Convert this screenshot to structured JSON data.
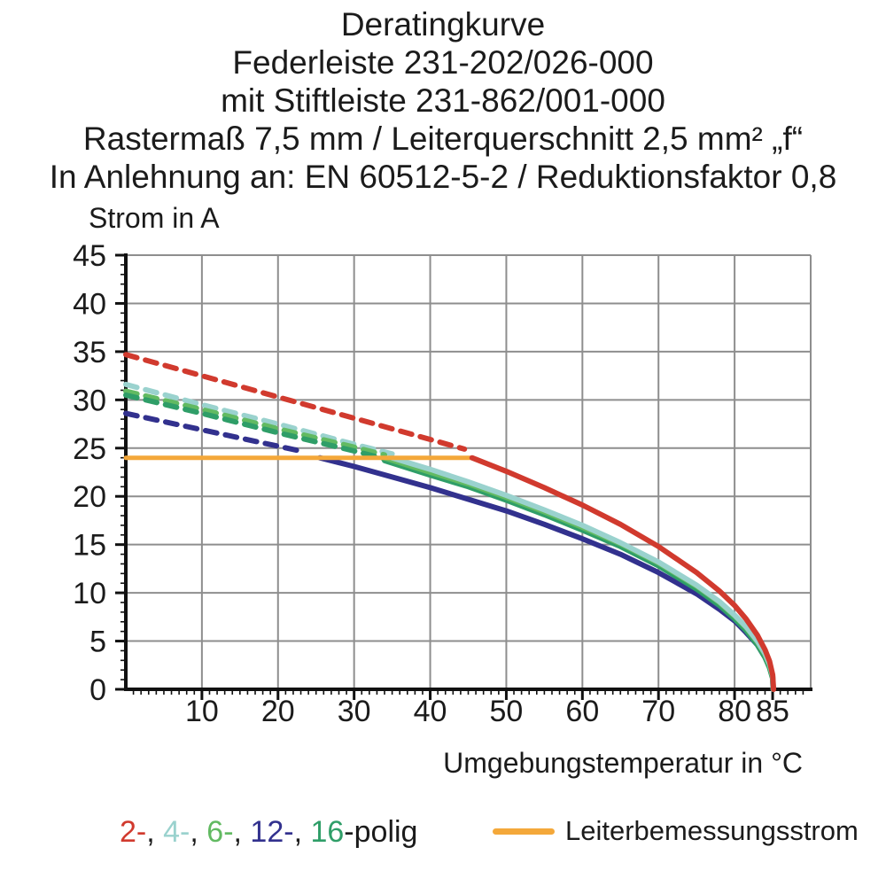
{
  "title": {
    "line1": "Deratingkurve",
    "line2": "Federleiste 231-202/026-000",
    "line3": "mit Stiftleiste 231-862/001-000",
    "line4": "Rastermaß 7,5 mm / Leiterquerschnitt 2,5 mm² „f“",
    "line5": "In Anlehnung an: EN 60512-5-2 / Reduktionsfaktor 0,8"
  },
  "axes": {
    "y_label": "Strom in A",
    "x_label": "Umgebungstemperatur in °C"
  },
  "legend": {
    "pole_items": [
      {
        "text": "2-",
        "color": "#d13a2e"
      },
      {
        "text": "4-",
        "color": "#9ad2ce"
      },
      {
        "text": "6-",
        "color": "#62ba62"
      },
      {
        "text": "12-",
        "color": "#32318e"
      },
      {
        "text": "16",
        "color": "#2f9e68"
      }
    ],
    "separator": ", ",
    "suffix": "-polig",
    "rated_label": "Leiterbemessungsstrom",
    "rated_color": "#f4a83a"
  },
  "colors": {
    "grid": "#8e8e8e",
    "axis": "#111111",
    "text": "#1b1b1b"
  },
  "chart_data": {
    "type": "line",
    "title": "Deratingkurve Federleiste 231-202/026-000 mit Stiftleiste 231-862/001-000",
    "xlabel": "Umgebungstemperatur in °C",
    "ylabel": "Strom in A",
    "xlim": [
      0,
      90
    ],
    "ylim": [
      0,
      45
    ],
    "x_ticks": [
      10,
      20,
      30,
      40,
      50,
      60,
      70,
      80,
      85
    ],
    "y_ticks": [
      0,
      5,
      10,
      15,
      20,
      25,
      30,
      35,
      40,
      45
    ],
    "grid": true,
    "legend_position": "bottom",
    "rated_current_A": 24,
    "max_temperature_C": 85,
    "series": [
      {
        "name": "2-polig gemessen",
        "poles": 2,
        "style": "dashed",
        "color": "#d13a2e",
        "points": [
          [
            0,
            34.7
          ],
          [
            10,
            32.5
          ],
          [
            20,
            30.3
          ],
          [
            30,
            28.1
          ],
          [
            40,
            25.9
          ],
          [
            44.5,
            24.9
          ]
        ]
      },
      {
        "name": "4-polig gemessen",
        "poles": 4,
        "style": "dashed",
        "color": "#9ad2ce",
        "points": [
          [
            0,
            31.6
          ],
          [
            10,
            29.5
          ],
          [
            20,
            27.5
          ],
          [
            30,
            25.4
          ],
          [
            35,
            24.4
          ]
        ]
      },
      {
        "name": "6-polig gemessen",
        "poles": 6,
        "style": "dashed",
        "color": "#62ba62",
        "points": [
          [
            0,
            30.9
          ],
          [
            10,
            29.0
          ],
          [
            20,
            27.0
          ],
          [
            30,
            25.1
          ],
          [
            34,
            24.3
          ]
        ]
      },
      {
        "name": "16-polig gemessen",
        "poles": 16,
        "style": "dashed",
        "color": "#2f9e68",
        "points": [
          [
            0,
            30.5
          ],
          [
            10,
            28.6
          ],
          [
            20,
            26.6
          ],
          [
            30,
            24.7
          ],
          [
            34,
            23.9
          ]
        ]
      },
      {
        "name": "12-polig gemessen",
        "poles": 12,
        "style": "dashed",
        "color": "#32318e",
        "points": [
          [
            0,
            28.6
          ],
          [
            10,
            26.9
          ],
          [
            20,
            25.2
          ],
          [
            23.5,
            24.6
          ]
        ]
      },
      {
        "name": "12-polig reduziert",
        "poles": 12,
        "style": "solid",
        "color": "#32318e",
        "points": [
          [
            25.5,
            24
          ],
          [
            30,
            23.1
          ],
          [
            35,
            22.0
          ],
          [
            40,
            20.9
          ],
          [
            45,
            19.7
          ],
          [
            50,
            18.5
          ],
          [
            55,
            17.1
          ],
          [
            60,
            15.6
          ],
          [
            65,
            14.0
          ],
          [
            70,
            12.1
          ],
          [
            75,
            9.9
          ],
          [
            78,
            8.3
          ],
          [
            80,
            7.1
          ],
          [
            81.5,
            5.9
          ],
          [
            83,
            4.6
          ],
          [
            84,
            3.3
          ],
          [
            84.6,
            2.3
          ],
          [
            85,
            1.2
          ],
          [
            85.05,
            0
          ]
        ]
      },
      {
        "name": "16-polig reduziert",
        "poles": 16,
        "style": "solid",
        "color": "#2f9e68",
        "points": [
          [
            34,
            23.7
          ],
          [
            40,
            22.2
          ],
          [
            45,
            21.0
          ],
          [
            50,
            19.6
          ],
          [
            55,
            18.1
          ],
          [
            60,
            16.5
          ],
          [
            65,
            14.8
          ],
          [
            70,
            12.8
          ],
          [
            75,
            10.4
          ],
          [
            78,
            8.7
          ],
          [
            80,
            7.3
          ],
          [
            81.5,
            6.1
          ],
          [
            83,
            4.6
          ],
          [
            84,
            3.3
          ],
          [
            84.6,
            2.2
          ],
          [
            85,
            1.1
          ],
          [
            85.06,
            0
          ]
        ]
      },
      {
        "name": "6-polig reduziert",
        "poles": 6,
        "style": "solid",
        "color": "#62ba62",
        "points": [
          [
            34,
            24
          ],
          [
            40,
            22.5
          ],
          [
            45,
            21.3
          ],
          [
            50,
            19.9
          ],
          [
            55,
            18.4
          ],
          [
            60,
            16.8
          ],
          [
            65,
            15.1
          ],
          [
            70,
            13.1
          ],
          [
            75,
            10.7
          ],
          [
            78,
            9.0
          ],
          [
            80,
            7.6
          ],
          [
            81.5,
            6.4
          ],
          [
            83,
            4.9
          ],
          [
            84,
            3.6
          ],
          [
            84.6,
            2.5
          ],
          [
            85,
            1.3
          ],
          [
            85.08,
            0
          ]
        ]
      },
      {
        "name": "4-polig reduziert",
        "poles": 4,
        "style": "solid",
        "color": "#9ad2ce",
        "points": [
          [
            35,
            24
          ],
          [
            40,
            22.8
          ],
          [
            45,
            21.5
          ],
          [
            50,
            20.1
          ],
          [
            55,
            18.6
          ],
          [
            60,
            17.0
          ],
          [
            65,
            15.2
          ],
          [
            70,
            13.2
          ],
          [
            75,
            10.8
          ],
          [
            78,
            9.1
          ],
          [
            80,
            7.7
          ],
          [
            81.5,
            6.5
          ],
          [
            83,
            5.0
          ],
          [
            84,
            3.7
          ],
          [
            84.6,
            2.6
          ],
          [
            85,
            1.4
          ],
          [
            85.1,
            0
          ]
        ]
      },
      {
        "name": "Leiterbemessungsstrom",
        "style": "rated",
        "color": "#f4a83a",
        "points": [
          [
            0,
            24
          ],
          [
            45.5,
            24
          ]
        ]
      },
      {
        "name": "2-polig reduziert",
        "poles": 2,
        "style": "solid",
        "color": "#d13a2e",
        "points": [
          [
            45.5,
            24
          ],
          [
            50,
            22.6
          ],
          [
            55,
            20.9
          ],
          [
            60,
            19.1
          ],
          [
            65,
            17.1
          ],
          [
            70,
            14.8
          ],
          [
            75,
            12.1
          ],
          [
            78,
            10.2
          ],
          [
            80,
            8.7
          ],
          [
            81.5,
            7.3
          ],
          [
            83,
            5.6
          ],
          [
            84,
            4.1
          ],
          [
            84.6,
            2.9
          ],
          [
            85,
            1.5
          ],
          [
            85.12,
            0
          ]
        ]
      }
    ]
  }
}
